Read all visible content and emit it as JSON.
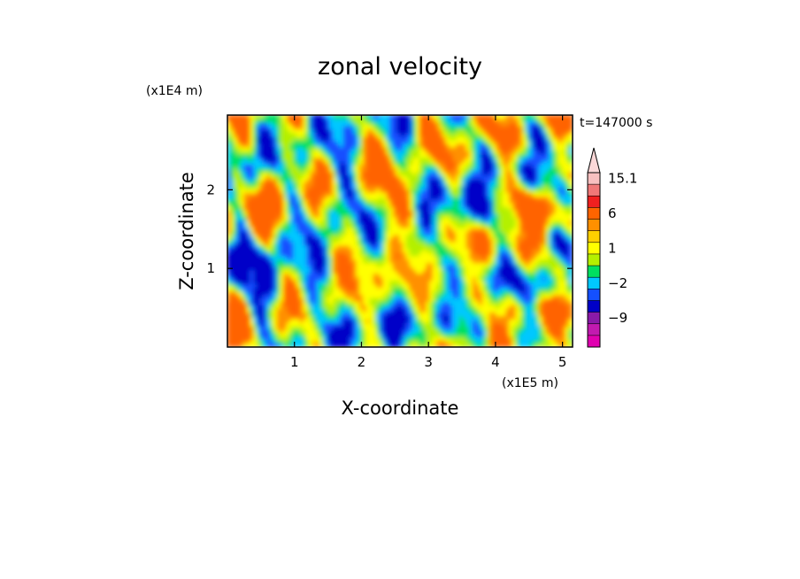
{
  "chart_data": {
    "type": "heatmap",
    "title": "zonal velocity",
    "xlabel": "X-coordinate",
    "ylabel": "Z-coordinate",
    "x_scale_label": "(x1E5 m)",
    "y_scale_label": "(x1E4 m)",
    "time_label": "t=147000 s",
    "xlim": [
      0,
      5.15
    ],
    "ylim": [
      0,
      2.95
    ],
    "x_ticks": [
      1,
      2,
      3,
      4,
      5
    ],
    "x_tick_labels": [
      "1",
      "2",
      "3",
      "4",
      "5"
    ],
    "y_ticks": [
      1,
      2
    ],
    "y_tick_labels": [
      "1",
      "2"
    ],
    "grid": false,
    "colorbar": {
      "levels": [
        -15,
        -12,
        -9,
        -6,
        -4,
        -2,
        -1,
        0,
        1,
        2,
        4,
        6,
        9,
        12,
        15.1
      ],
      "colors": [
        "#e000b0",
        "#c21ab0",
        "#8a1aa8",
        "#0000c8",
        "#1450ff",
        "#00c8ff",
        "#00e060",
        "#b4f000",
        "#ffff00",
        "#ffd000",
        "#ff9000",
        "#ff6400",
        "#f02020",
        "#f07878",
        "#f8c0c0"
      ],
      "tick_labels": [
        "15.1",
        "6",
        "1",
        "−2",
        "−9"
      ],
      "tick_values": [
        15.1,
        6,
        1,
        -2,
        -9
      ],
      "extends_max": true
    },
    "palette_index_by_value_class": {
      "strong_negative": 3,
      "moderate_negative": 4,
      "weak_negative": 5,
      "near_zero_negative": 6,
      "near_zero": 7,
      "weak_positive": 8,
      "moderate_positive": 10,
      "strong_positive": 11
    }
  }
}
